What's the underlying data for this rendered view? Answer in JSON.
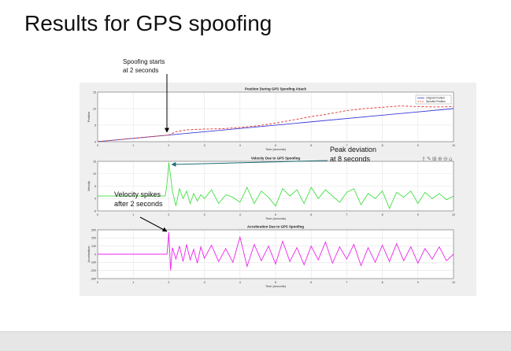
{
  "slide": {
    "title": "Results for GPS spoofing"
  },
  "annotations": {
    "spoof_start": [
      "Spoofing starts",
      "at 2 seconds"
    ],
    "peak_deviation": [
      "Peak deviation",
      "at 8 seconds"
    ],
    "velocity_spikes": [
      "Velocity spikes",
      "after 2 seconds"
    ]
  },
  "colors": {
    "original": "#3b3bd9",
    "spoofed": "#e0332b",
    "velocity": "#44e044",
    "acceleration": "#ee22ee",
    "figure_bg": "#efefef",
    "axes_bg": "#ffffff",
    "grid": "#e4e4e4"
  },
  "toolbar_icons": [
    "export-icon",
    "brush-icon",
    "data-tips-icon",
    "zoom-in-icon",
    "zoom-out-icon",
    "home-icon"
  ],
  "chart_data": [
    {
      "type": "line",
      "title": "Position During GPS Spoofing Attack",
      "xlabel": "Time (seconds)",
      "ylabel": "Position",
      "xlim": [
        0,
        10
      ],
      "ylim": [
        0,
        15
      ],
      "xticks": [
        0,
        1,
        2,
        3,
        4,
        5,
        6,
        7,
        8,
        9,
        10
      ],
      "yticks": [
        0,
        5,
        10,
        15
      ],
      "grid": true,
      "legend": "top-right",
      "series": [
        {
          "name": "Original Position",
          "style": "solid",
          "x": [
            0,
            10
          ],
          "y": [
            0,
            10
          ]
        },
        {
          "name": "Spoofed Position",
          "style": "dashed",
          "x": [
            0,
            1,
            2,
            2.2,
            2.5,
            3,
            3.5,
            4,
            4.5,
            5,
            5.5,
            6,
            6.5,
            7,
            7.5,
            8,
            8.5,
            9,
            9.5,
            10
          ],
          "y": [
            0,
            1,
            2,
            3,
            3.6,
            3.8,
            3.9,
            4.3,
            4.8,
            5.6,
            6.6,
            7.6,
            8.4,
            9.4,
            10.0,
            10.4,
            10.8,
            10.6,
            10.5,
            10.6
          ]
        }
      ]
    },
    {
      "type": "line",
      "title": "Velocity Due to GPS Spoofing",
      "xlabel": "Time (seconds)",
      "ylabel": "Velocity",
      "xlim": [
        0,
        10
      ],
      "ylim": [
        -5,
        15
      ],
      "xticks": [
        0,
        1,
        2,
        3,
        4,
        5,
        6,
        7,
        8,
        9,
        10
      ],
      "yticks": [
        -5,
        0,
        5,
        10,
        15
      ],
      "grid": true,
      "series": [
        {
          "x": [
            0,
            1.9,
            1.95,
            2.0,
            2.05,
            2.1,
            2.2,
            2.3,
            2.4,
            2.5,
            2.6,
            2.7,
            2.8,
            2.9,
            3.0,
            3.2,
            3.4,
            3.6,
            3.8,
            4.0,
            4.2,
            4.4,
            4.6,
            4.8,
            5.0,
            5.2,
            5.4,
            5.6,
            5.8,
            6.0,
            6.2,
            6.4,
            6.6,
            6.8,
            7.0,
            7.2,
            7.4,
            7.6,
            7.8,
            8.0,
            8.2,
            8.4,
            8.6,
            8.8,
            9.0,
            9.2,
            9.4,
            9.6,
            9.8,
            10.0
          ],
          "y": [
            1,
            1,
            6,
            14.5,
            9,
            3,
            -3,
            4,
            0,
            3,
            -2,
            2,
            -1,
            1.5,
            0,
            3.5,
            -2,
            1.5,
            0.5,
            -1.5,
            4.5,
            -2,
            3,
            0.5,
            -3,
            4,
            1,
            3.5,
            -2,
            4.5,
            0,
            3.5,
            1,
            -1.5,
            2.5,
            4,
            -2.5,
            2,
            0,
            3,
            -4,
            2.5,
            0.5,
            3,
            -2,
            2.5,
            0,
            2,
            -0.5,
            1
          ]
        }
      ]
    },
    {
      "type": "line",
      "title": "Acceleration Due to GPS Spoofing",
      "xlabel": "Time (seconds)",
      "ylabel": "Acceleration",
      "xlim": [
        0,
        10
      ],
      "ylim": [
        -300,
        300
      ],
      "xticks": [
        0,
        1,
        2,
        3,
        4,
        5,
        6,
        7,
        8,
        9,
        10
      ],
      "yticks": [
        -300,
        -200,
        -100,
        0,
        100,
        200,
        300
      ],
      "grid": true,
      "series": [
        {
          "x": [
            0,
            1.95,
            2.0,
            2.05,
            2.1,
            2.2,
            2.3,
            2.4,
            2.5,
            2.6,
            2.7,
            2.8,
            2.9,
            3.0,
            3.2,
            3.4,
            3.6,
            3.8,
            4.0,
            4.2,
            4.4,
            4.6,
            4.8,
            5.0,
            5.2,
            5.4,
            5.6,
            5.8,
            6.0,
            6.2,
            6.4,
            6.6,
            6.8,
            7.0,
            7.2,
            7.4,
            7.6,
            7.8,
            8.0,
            8.2,
            8.4,
            8.6,
            8.8,
            9.0,
            9.2,
            9.4,
            9.6,
            9.8,
            10.0
          ],
          "y": [
            0,
            0,
            270,
            -200,
            80,
            -60,
            100,
            -90,
            120,
            -70,
            60,
            -110,
            90,
            -50,
            110,
            -90,
            70,
            -100,
            210,
            -150,
            120,
            -80,
            100,
            -120,
            160,
            -90,
            80,
            -130,
            100,
            -70,
            150,
            -110,
            90,
            -60,
            120,
            -140,
            80,
            -100,
            110,
            -90,
            130,
            -80,
            90,
            -110,
            70,
            -60,
            90,
            -80,
            0
          ]
        }
      ]
    }
  ]
}
